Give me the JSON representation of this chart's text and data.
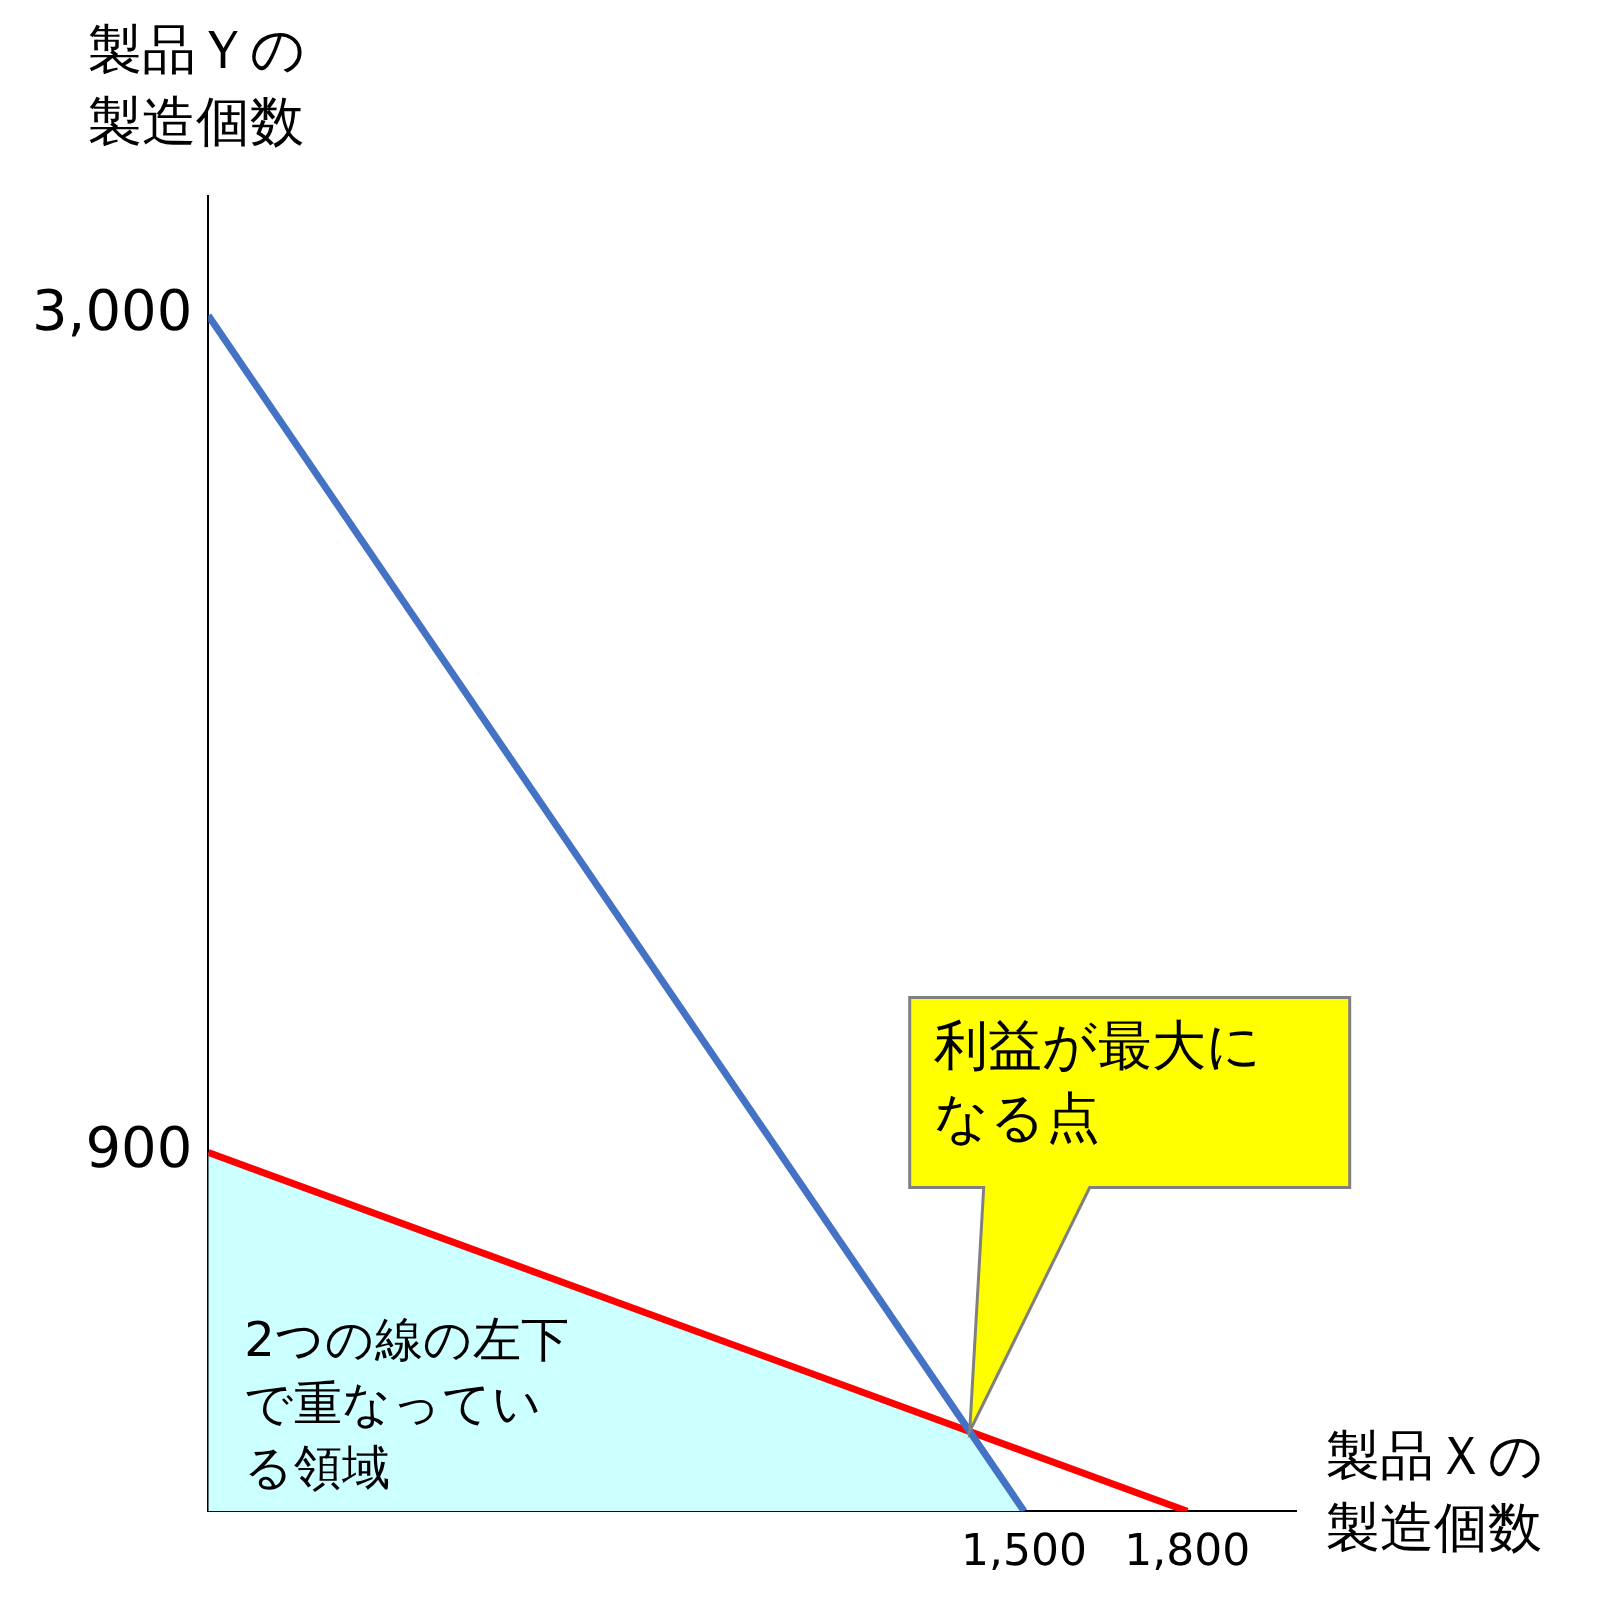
{
  "chart_data": {
    "type": "line",
    "xlabel": "製品Ｘの製造個数",
    "ylabel": "製品Ｙの製造個数",
    "xlim": [
      0,
      2000
    ],
    "ylim": [
      0,
      3300
    ],
    "xticks": [
      {
        "value": 1500,
        "label": "1,500"
      },
      {
        "value": 1800,
        "label": "1,800"
      }
    ],
    "yticks": [
      {
        "value": 900,
        "label": "900"
      },
      {
        "value": 3000,
        "label": "3,000"
      }
    ],
    "series": [
      {
        "type": "area",
        "color": "#ccffff",
        "x": [
          0,
          1400,
          1500
        ],
        "values": [
          900,
          200,
          0
        ]
      },
      {
        "type": "line",
        "color": "#4472c4",
        "x": [
          0,
          1500
        ],
        "values": [
          3000,
          0
        ]
      },
      {
        "type": "line",
        "color": "#ff0000",
        "x": [
          0,
          1800
        ],
        "values": [
          900,
          0
        ]
      }
    ],
    "annotations": [
      "利益が最大になる点",
      "2つの線の左下で重なっている領域"
    ],
    "grid": false,
    "legend": false
  }
}
